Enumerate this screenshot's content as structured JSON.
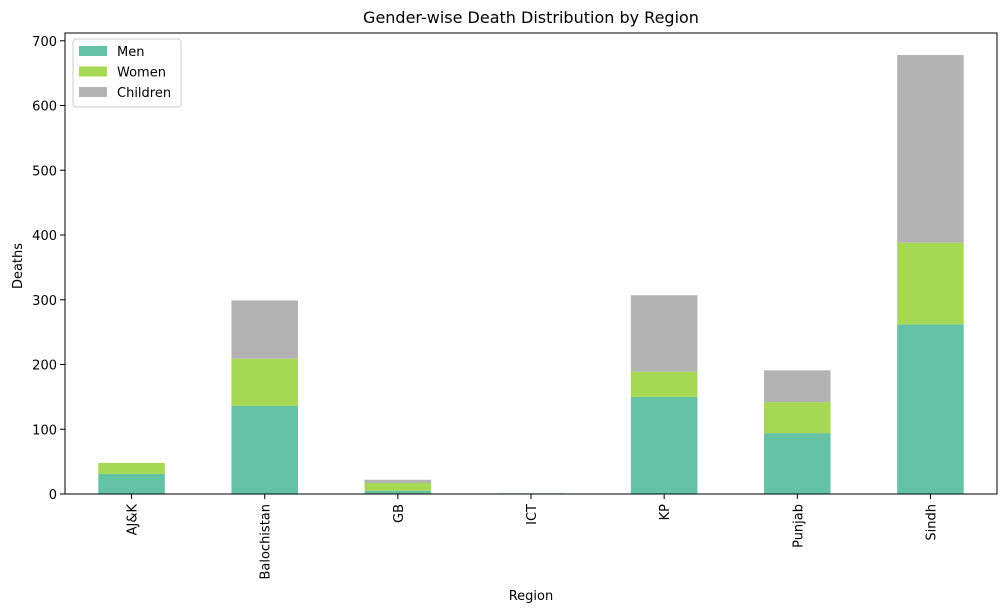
{
  "chart_data": {
    "type": "bar",
    "stacked": true,
    "title": "Gender-wise Death Distribution by Region",
    "xlabel": "Region",
    "ylabel": "Deaths",
    "ylim": [
      0,
      712
    ],
    "yticks": [
      0,
      100,
      200,
      300,
      400,
      500,
      600,
      700
    ],
    "categories": [
      "AJ&K",
      "Balochistan",
      "GB",
      "ICT",
      "KP",
      "Punjab",
      "Sindh"
    ],
    "series": [
      {
        "name": "Men",
        "color": "#66c2a5",
        "values": [
          31,
          136,
          5,
          1,
          150,
          94,
          262
        ]
      },
      {
        "name": "Women",
        "color": "#a6d854",
        "values": [
          17,
          73,
          12,
          0,
          39,
          48,
          126
        ]
      },
      {
        "name": "Children",
        "color": "#b3b3b3",
        "values": [
          0,
          90,
          5,
          0,
          118,
          49,
          290
        ]
      }
    ],
    "legend_position": "top-left",
    "grid": false
  }
}
